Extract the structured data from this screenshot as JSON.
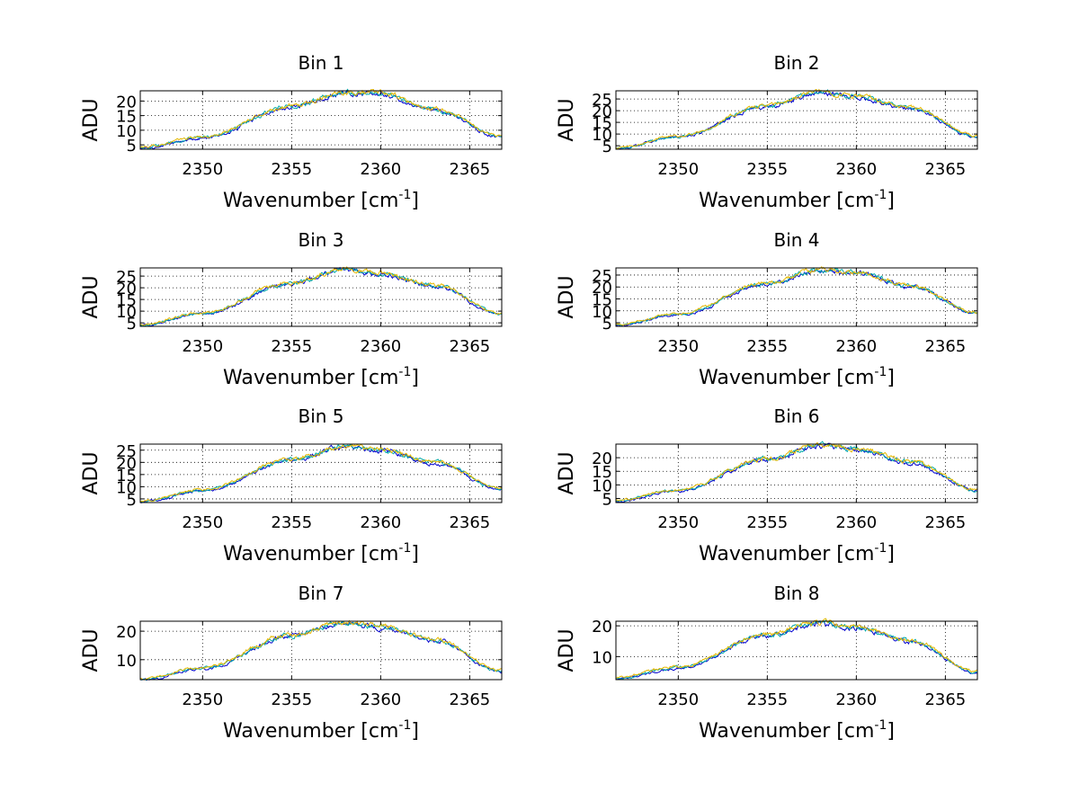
{
  "figure": {
    "panel_count": 8,
    "layout": "4 rows x 2 columns"
  },
  "chart_data": [
    {
      "type": "line",
      "title": "Bin 1",
      "xlabel": "Wavenumber [cm",
      "xlabel_sup": "-1",
      "xlabel_end": "]",
      "ylabel": "ADU",
      "xlim": [
        2346.5,
        2366.8
      ],
      "ylim": [
        3.5,
        23.5
      ],
      "xticks": [
        2350,
        2355,
        2360,
        2365
      ],
      "yticks": [
        5,
        10,
        15,
        20
      ],
      "grid": true,
      "legend": "none",
      "envelope": {
        "x": [
          2346.5,
          2350,
          2355,
          2358,
          2360,
          2363,
          2366.8
        ],
        "y": [
          4,
          7.5,
          18,
          23,
          22.5,
          17,
          8
        ]
      },
      "series": [
        {
          "color": "#0000cc"
        },
        {
          "color": "#00aaaa"
        },
        {
          "color": "#e6b800"
        }
      ]
    },
    {
      "type": "line",
      "title": "Bin 2",
      "xlabel": "Wavenumber [cm",
      "xlabel_sup": "-1",
      "xlabel_end": "]",
      "ylabel": "ADU",
      "xlim": [
        2346.5,
        2366.8
      ],
      "ylim": [
        3.5,
        28.5
      ],
      "xticks": [
        2350,
        2355,
        2360,
        2365
      ],
      "yticks": [
        5,
        10,
        15,
        20,
        25
      ],
      "grid": true,
      "legend": "none",
      "envelope": {
        "x": [
          2346.5,
          2350,
          2355,
          2358,
          2360,
          2363,
          2366.8
        ],
        "y": [
          4,
          9,
          22,
          28,
          26,
          21,
          9
        ]
      },
      "series": [
        {
          "color": "#0000cc"
        },
        {
          "color": "#00aaaa"
        },
        {
          "color": "#e6b800"
        }
      ]
    },
    {
      "type": "line",
      "title": "Bin 3",
      "xlabel": "Wavenumber [cm",
      "xlabel_sup": "-1",
      "xlabel_end": "]",
      "ylabel": "ADU",
      "xlim": [
        2346.5,
        2366.8
      ],
      "ylim": [
        3.5,
        28.5
      ],
      "xticks": [
        2350,
        2355,
        2360,
        2365
      ],
      "yticks": [
        5,
        10,
        15,
        20,
        25
      ],
      "grid": true,
      "legend": "none",
      "envelope": {
        "x": [
          2346.5,
          2350,
          2355,
          2358,
          2360,
          2363,
          2366.8
        ],
        "y": [
          4,
          9,
          22,
          28,
          26,
          21,
          9
        ]
      },
      "series": [
        {
          "color": "#0000cc"
        },
        {
          "color": "#00aaaa"
        },
        {
          "color": "#e6b800"
        }
      ]
    },
    {
      "type": "line",
      "title": "Bin 4",
      "xlabel": "Wavenumber [cm",
      "xlabel_sup": "-1",
      "xlabel_end": "]",
      "ylabel": "ADU",
      "xlim": [
        2346.5,
        2366.8
      ],
      "ylim": [
        3.5,
        28.0
      ],
      "xticks": [
        2350,
        2355,
        2360,
        2365
      ],
      "yticks": [
        5,
        10,
        15,
        20,
        25
      ],
      "grid": true,
      "legend": "none",
      "envelope": {
        "x": [
          2346.5,
          2350,
          2355,
          2358,
          2360,
          2363,
          2366.8
        ],
        "y": [
          4,
          8.5,
          21.5,
          27,
          26,
          20.5,
          9
        ]
      },
      "series": [
        {
          "color": "#0000cc"
        },
        {
          "color": "#00aaaa"
        },
        {
          "color": "#e6b800"
        }
      ]
    },
    {
      "type": "line",
      "title": "Bin 5",
      "xlabel": "Wavenumber [cm",
      "xlabel_sup": "-1",
      "xlabel_end": "]",
      "ylabel": "ADU",
      "xlim": [
        2346.5,
        2366.8
      ],
      "ylim": [
        3.5,
        27.5
      ],
      "xticks": [
        2350,
        2355,
        2360,
        2365
      ],
      "yticks": [
        5,
        10,
        15,
        20,
        25
      ],
      "grid": true,
      "legend": "none",
      "envelope": {
        "x": [
          2346.5,
          2350,
          2355,
          2358,
          2360,
          2363,
          2366.8
        ],
        "y": [
          4,
          8.5,
          21,
          26.5,
          25,
          20,
          9
        ]
      },
      "series": [
        {
          "color": "#0000cc"
        },
        {
          "color": "#00aaaa"
        },
        {
          "color": "#e6b800"
        }
      ]
    },
    {
      "type": "line",
      "title": "Bin 6",
      "xlabel": "Wavenumber [cm",
      "xlabel_sup": "-1",
      "xlabel_end": "]",
      "ylabel": "ADU",
      "xlim": [
        2346.5,
        2366.8
      ],
      "ylim": [
        3.5,
        25.0
      ],
      "xticks": [
        2350,
        2355,
        2360,
        2365
      ],
      "yticks": [
        5,
        10,
        15,
        20
      ],
      "grid": true,
      "legend": "none",
      "envelope": {
        "x": [
          2346.5,
          2350,
          2355,
          2358,
          2360,
          2363,
          2366.8
        ],
        "y": [
          4,
          8,
          19.5,
          24.5,
          23,
          18.5,
          8
        ]
      },
      "series": [
        {
          "color": "#0000cc"
        },
        {
          "color": "#00aaaa"
        },
        {
          "color": "#e6b800"
        }
      ]
    },
    {
      "type": "line",
      "title": "Bin 7",
      "xlabel": "Wavenumber [cm",
      "xlabel_sup": "-1",
      "xlabel_end": "]",
      "ylabel": "ADU",
      "xlim": [
        2346.5,
        2366.8
      ],
      "ylim": [
        3.0,
        23.5
      ],
      "xticks": [
        2350,
        2355,
        2360,
        2365
      ],
      "yticks": [
        10,
        20
      ],
      "grid": true,
      "legend": "none",
      "envelope": {
        "x": [
          2346.5,
          2350,
          2355,
          2358,
          2360,
          2363,
          2366.8
        ],
        "y": [
          3,
          7,
          18.5,
          23,
          21.5,
          17,
          6
        ]
      },
      "series": [
        {
          "color": "#0000cc"
        },
        {
          "color": "#00aaaa"
        },
        {
          "color": "#e6b800"
        }
      ]
    },
    {
      "type": "line",
      "title": "Bin 8",
      "xlabel": "Wavenumber [cm",
      "xlabel_sup": "-1",
      "xlabel_end": "]",
      "ylabel": "ADU",
      "xlim": [
        2346.5,
        2366.8
      ],
      "ylim": [
        2.5,
        21.5
      ],
      "xticks": [
        2350,
        2355,
        2360,
        2365
      ],
      "yticks": [
        10,
        20
      ],
      "grid": true,
      "legend": "none",
      "envelope": {
        "x": [
          2346.5,
          2350,
          2355,
          2358,
          2360,
          2363,
          2366.8
        ],
        "y": [
          3,
          6.5,
          17,
          21,
          19.5,
          15,
          5
        ]
      },
      "series": [
        {
          "color": "#0000cc"
        },
        {
          "color": "#00aaaa"
        },
        {
          "color": "#e6b800"
        }
      ]
    }
  ]
}
